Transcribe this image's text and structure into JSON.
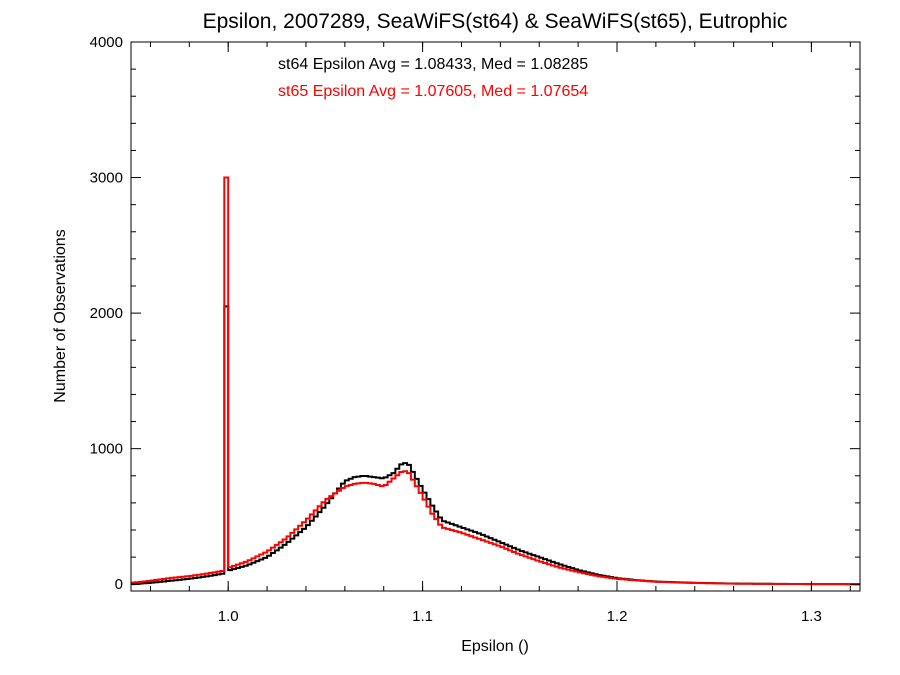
{
  "chart_data": {
    "type": "histogram",
    "title": "Epsilon, 2007289, SeaWiFS(st64) & SeaWiFS(st65), Eutrophic",
    "xlabel": "Epsilon ()",
    "ylabel": "Number of Observations",
    "xlim": [
      0.95,
      1.325
    ],
    "ylim": [
      -50,
      4000
    ],
    "xticks": [
      1.0,
      1.1,
      1.2,
      1.3
    ],
    "xtick_labels": [
      "1.0",
      "1.1",
      "1.2",
      "1.3"
    ],
    "yticks": [
      0,
      1000,
      2000,
      3000,
      4000
    ],
    "ytick_labels": [
      "0",
      "1000",
      "2000",
      "3000",
      "4000"
    ],
    "grid": false,
    "annotations": [
      {
        "text": "st64 Epsilon Avg = 1.08433, Med = 1.08285",
        "color": "#000000"
      },
      {
        "text": "st65 Epsilon Avg = 1.07605, Med = 1.07654",
        "color": "#ff0000"
      }
    ],
    "series": [
      {
        "color": "#000000",
        "bin_width": 0.002,
        "spike": {
          "x": 0.999,
          "value": 2050
        },
        "points": [
          [
            0.95,
            0
          ],
          [
            0.96,
            10
          ],
          [
            0.97,
            25
          ],
          [
            0.98,
            40
          ],
          [
            0.99,
            60
          ],
          [
            0.998,
            80
          ],
          [
            1.0,
            100
          ],
          [
            1.01,
            140
          ],
          [
            1.02,
            200
          ],
          [
            1.03,
            300
          ],
          [
            1.04,
            420
          ],
          [
            1.05,
            580
          ],
          [
            1.06,
            760
          ],
          [
            1.065,
            790
          ],
          [
            1.07,
            800
          ],
          [
            1.075,
            790
          ],
          [
            1.08,
            780
          ],
          [
            1.085,
            820
          ],
          [
            1.09,
            900
          ],
          [
            1.093,
            880
          ],
          [
            1.1,
            700
          ],
          [
            1.105,
            580
          ],
          [
            1.11,
            470
          ],
          [
            1.12,
            420
          ],
          [
            1.13,
            370
          ],
          [
            1.14,
            310
          ],
          [
            1.15,
            250
          ],
          [
            1.16,
            200
          ],
          [
            1.17,
            150
          ],
          [
            1.18,
            105
          ],
          [
            1.19,
            70
          ],
          [
            1.2,
            45
          ],
          [
            1.21,
            30
          ],
          [
            1.22,
            20
          ],
          [
            1.24,
            10
          ],
          [
            1.26,
            5
          ],
          [
            1.28,
            3
          ],
          [
            1.3,
            1
          ],
          [
            1.325,
            0
          ]
        ]
      },
      {
        "color": "#ff0000",
        "bin_width": 0.002,
        "spike": {
          "x": 0.999,
          "value": 3000
        },
        "points": [
          [
            0.95,
            10
          ],
          [
            0.96,
            25
          ],
          [
            0.97,
            45
          ],
          [
            0.98,
            60
          ],
          [
            0.99,
            80
          ],
          [
            0.998,
            100
          ],
          [
            1.0,
            120
          ],
          [
            1.01,
            170
          ],
          [
            1.02,
            240
          ],
          [
            1.03,
            340
          ],
          [
            1.04,
            470
          ],
          [
            1.05,
            620
          ],
          [
            1.06,
            720
          ],
          [
            1.065,
            740
          ],
          [
            1.07,
            750
          ],
          [
            1.075,
            740
          ],
          [
            1.08,
            720
          ],
          [
            1.085,
            780
          ],
          [
            1.09,
            840
          ],
          [
            1.093,
            820
          ],
          [
            1.1,
            650
          ],
          [
            1.105,
            520
          ],
          [
            1.11,
            420
          ],
          [
            1.12,
            380
          ],
          [
            1.13,
            330
          ],
          [
            1.14,
            280
          ],
          [
            1.15,
            220
          ],
          [
            1.16,
            170
          ],
          [
            1.17,
            125
          ],
          [
            1.18,
            90
          ],
          [
            1.19,
            60
          ],
          [
            1.2,
            40
          ],
          [
            1.21,
            28
          ],
          [
            1.22,
            18
          ],
          [
            1.24,
            9
          ],
          [
            1.26,
            4
          ],
          [
            1.28,
            2
          ],
          [
            1.3,
            1
          ],
          [
            1.325,
            0
          ]
        ]
      }
    ]
  }
}
